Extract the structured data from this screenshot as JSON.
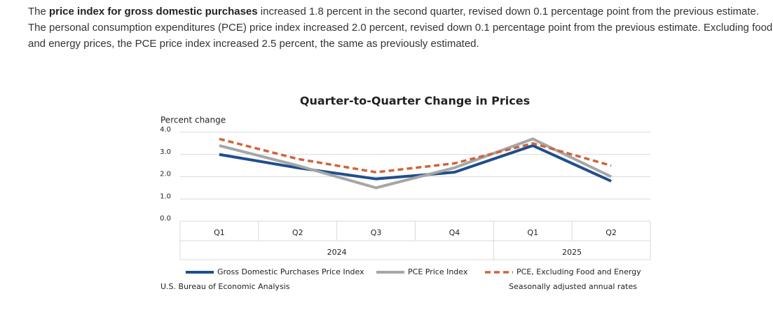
{
  "paragraph": [
    "The ",
    "price index for gross domestic purchases",
    " increased 1.8 percent in the second quarter, revised down 0.1 percentage point from the previous estimate. The personal consumption expenditures (PCE) price index increased 2.0 percent, revised down 0.1 percentage point from the previous estimate. Excluding food and energy prices, the PCE price index increased 2.5 percent, the same as previously estimated."
  ],
  "chart_data": {
    "type": "line",
    "title": "Quarter-to-Quarter Change in Prices",
    "y_label": "Percent change",
    "categories": [
      "Q1",
      "Q2",
      "Q3",
      "Q4",
      "Q1",
      "Q2"
    ],
    "years": [
      "2024",
      "2025"
    ],
    "series": [
      {
        "name": "Gross Domestic Purchases Price Index",
        "color": "#1f4e8c",
        "dashed": false,
        "values": [
          3.0,
          2.4,
          1.9,
          2.2,
          3.4,
          1.8
        ]
      },
      {
        "name": "PCE Price Index",
        "color": "#a6a6a6",
        "dashed": false,
        "values": [
          3.4,
          2.5,
          1.5,
          2.4,
          3.7,
          2.0
        ]
      },
      {
        "name": "PCE, Excluding Food and Energy",
        "color": "#d0643a",
        "dashed": true,
        "values": [
          3.7,
          2.8,
          2.2,
          2.6,
          3.5,
          2.5
        ]
      }
    ],
    "ylim": [
      0,
      4
    ],
    "yticks": [
      {
        "value": 0,
        "label": "0.0"
      },
      {
        "value": 1,
        "label": "1.0"
      },
      {
        "value": 2,
        "label": "2.0"
      },
      {
        "value": 3,
        "label": "3.0"
      },
      {
        "value": 4,
        "label": "4.0"
      }
    ],
    "grid": true,
    "legend": "bottom",
    "source": "U.S. Bureau of Economic Analysis",
    "note": "Seasonally adjusted annual rates"
  }
}
